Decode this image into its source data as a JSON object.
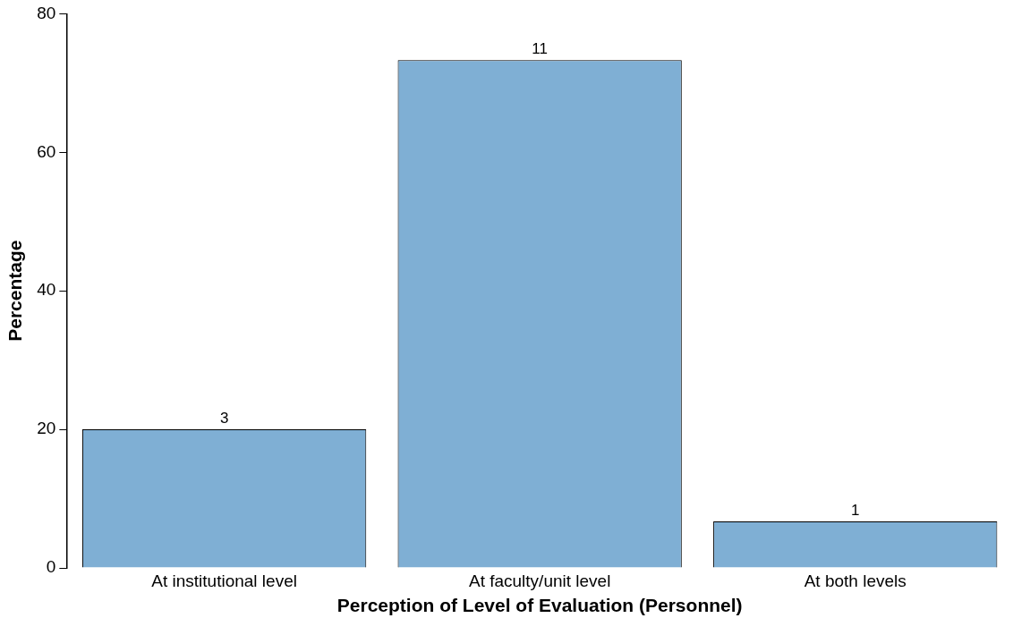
{
  "chart_data": {
    "type": "bar",
    "xlabel": "Perception of Level of Evaluation (Personnel)",
    "ylabel": "Percentage",
    "categories": [
      "At institutional level",
      "At faculty/unit level",
      "At both levels"
    ],
    "values": [
      20,
      73.3,
      6.7
    ],
    "annotations": [
      {
        "text": "3",
        "x": "At institutional level",
        "y": 20
      },
      {
        "text": "11",
        "x": "At faculty/unit level",
        "y": 73.3
      },
      {
        "text": "1",
        "x": "At both levels",
        "y": 6.7
      }
    ],
    "color": "#7fafd4",
    "ylim": [
      0,
      80
    ],
    "yticks": [
      0,
      20,
      40,
      60,
      80
    ]
  }
}
